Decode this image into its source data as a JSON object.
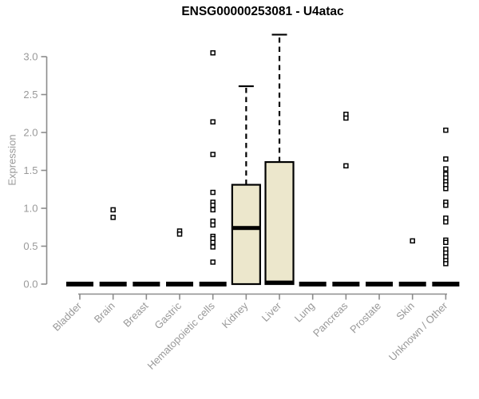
{
  "chart_data": {
    "type": "boxplot",
    "title": "ENSG00000253081 - U4atac",
    "ylabel": "Expression",
    "xlabel": "",
    "ylim": [
      0.0,
      3.3
    ],
    "yticks": [
      0.0,
      0.5,
      1.0,
      1.5,
      2.0,
      2.5,
      3.0
    ],
    "grid": false,
    "legend": "none",
    "categories": [
      "Bladder",
      "Brain",
      "Breast",
      "Gastric",
      "Hematopoietic cells",
      "Kidney",
      "Liver",
      "Lung",
      "Pancreas",
      "Prostate",
      "Skin",
      "Unknown / Other"
    ],
    "colors": {
      "background": "#ffffff",
      "box_fill": "#ece7cc",
      "box_stroke": "#000000",
      "median": "#000000",
      "whisker": "#000000",
      "point_fill": "#ffffff",
      "point_stroke": "#000000",
      "axis": "#8c8c8c",
      "tick_label": "#999999",
      "axis_title": "#999999",
      "title": "#000000"
    },
    "boxes": [
      {
        "category": "Bladder",
        "q1": 0,
        "median": 0,
        "q3": 0,
        "whisker_low": 0,
        "whisker_high": 0,
        "points": []
      },
      {
        "category": "Brain",
        "q1": 0,
        "median": 0,
        "q3": 0,
        "whisker_low": 0,
        "whisker_high": 0,
        "points": [
          0.98,
          0.88
        ]
      },
      {
        "category": "Breast",
        "q1": 0,
        "median": 0,
        "q3": 0,
        "whisker_low": 0,
        "whisker_high": 0,
        "points": []
      },
      {
        "category": "Gastric",
        "q1": 0,
        "median": 0,
        "q3": 0,
        "whisker_low": 0,
        "whisker_high": 0,
        "points": [
          0.7,
          0.66
        ]
      },
      {
        "category": "Hematopoietic cells",
        "q1": 0,
        "median": 0,
        "q3": 0,
        "whisker_low": 0,
        "whisker_high": 0,
        "points": [
          3.05,
          2.14,
          1.71,
          1.21,
          1.08,
          1.04,
          0.98,
          0.83,
          0.78,
          0.63,
          0.6,
          0.55,
          0.49,
          0.29
        ]
      },
      {
        "category": "Kidney",
        "q1": 0,
        "median": 0.74,
        "q3": 1.31,
        "whisker_low": 0,
        "whisker_high": 2.61,
        "points": []
      },
      {
        "category": "Liver",
        "q1": 0,
        "median": 0.02,
        "q3": 1.61,
        "whisker_low": 0,
        "whisker_high": 3.29,
        "points": []
      },
      {
        "category": "Lung",
        "q1": 0,
        "median": 0,
        "q3": 0,
        "whisker_low": 0,
        "whisker_high": 0,
        "points": []
      },
      {
        "category": "Pancreas",
        "q1": 0,
        "median": 0,
        "q3": 0,
        "whisker_low": 0,
        "whisker_high": 0,
        "points": [
          2.24,
          2.19,
          1.56
        ]
      },
      {
        "category": "Prostate",
        "q1": 0,
        "median": 0,
        "q3": 0,
        "whisker_low": 0,
        "whisker_high": 0,
        "points": []
      },
      {
        "category": "Skin",
        "q1": 0,
        "median": 0,
        "q3": 0,
        "whisker_low": 0,
        "whisker_high": 0,
        "points": [
          0.57
        ]
      },
      {
        "category": "Unknown / Other",
        "q1": 0,
        "median": 0,
        "q3": 0,
        "whisker_low": 0,
        "whisker_high": 0,
        "points": [
          2.03,
          1.65,
          1.52,
          1.45,
          1.4,
          1.35,
          1.31,
          1.26,
          1.08,
          1.04,
          0.87,
          0.82,
          0.58,
          0.55,
          0.46,
          0.41,
          0.36,
          0.31,
          0.27
        ]
      }
    ]
  }
}
